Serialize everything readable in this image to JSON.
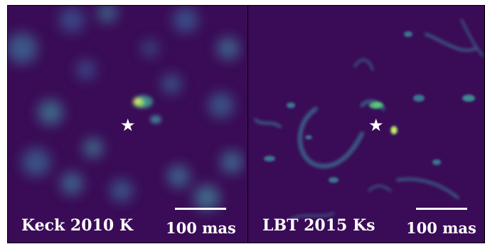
{
  "panels": [
    {
      "caption": "Keck 2010 K",
      "scale_label": "100 mas",
      "star_icon": "star-icon"
    },
    {
      "caption": "LBT 2015 Ks",
      "scale_label": "100 mas",
      "star_icon": "star-icon"
    }
  ],
  "colors": {
    "background": "#3a0b56",
    "bright_source": "#f5e85a",
    "diffuse": "#2b6e8e"
  }
}
